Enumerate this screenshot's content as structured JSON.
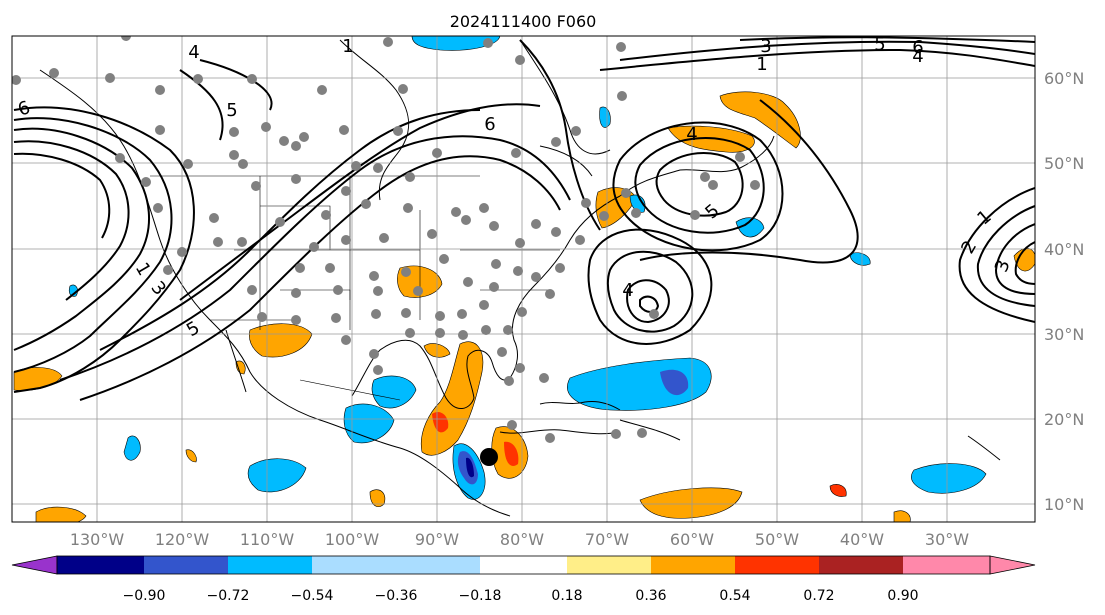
{
  "map": {
    "title": "2024111400 F060",
    "lon_ticks": [
      "130°W",
      "120°W",
      "110°W",
      "100°W",
      "90°W",
      "80°W",
      "70°W",
      "60°W",
      "50°W",
      "40°W",
      "30°W"
    ],
    "lat_ticks": [
      "60°N",
      "50°N",
      "40°N",
      "30°N",
      "20°N",
      "10°N"
    ],
    "extent": {
      "lon_min": -140,
      "lon_max": -20,
      "lat_min": 8,
      "lat_max": 65
    },
    "contour_labels": [
      "6",
      "5",
      "4",
      "3",
      "2",
      "1"
    ],
    "marker": {
      "name": "storm-center-marker",
      "lon": -84.5,
      "lat": 15.5
    },
    "colorbar": {
      "ticks": [
        "−0.90",
        "−0.72",
        "−0.54",
        "−0.36",
        "−0.18",
        "0.18",
        "0.36",
        "0.54",
        "0.72",
        "0.90"
      ],
      "colors": [
        "#9933cc",
        "#000088",
        "#3355cc",
        "#00bbff",
        "#aaddff",
        "#ffffff",
        "#ffee88",
        "#ffa500",
        "#ff3300",
        "#aa2222",
        "#ff88aa"
      ]
    }
  }
}
